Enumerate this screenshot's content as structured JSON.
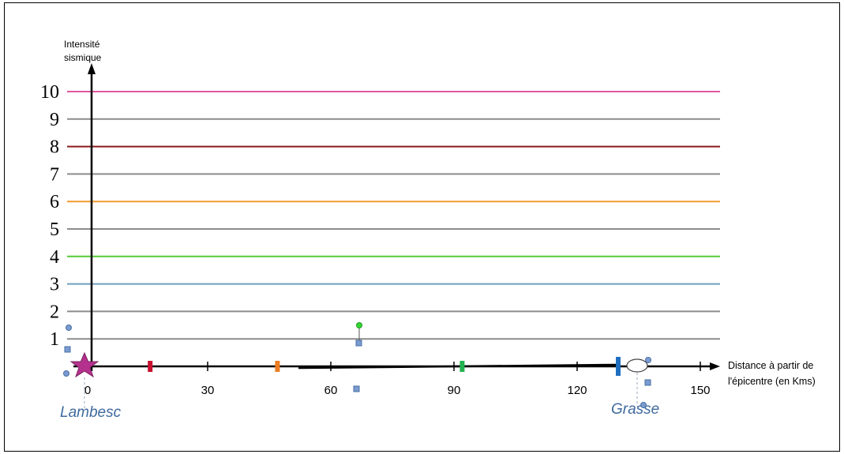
{
  "chart_data": {
    "type": "line",
    "y_label_lines": [
      "Intensité",
      "sismique"
    ],
    "x_label_lines": [
      "Distance à partir de",
      "l'épicentre (en Kms)"
    ],
    "y_ticks": [
      "1",
      "2",
      "3",
      "4",
      "5",
      "6",
      "7",
      "8",
      "9",
      "10"
    ],
    "x_ticks": [
      "0",
      "30",
      "60",
      "90",
      "120",
      "150"
    ],
    "xlim": [
      0,
      155
    ],
    "ylim": [
      0,
      10
    ],
    "intensity_lines": [
      {
        "level": 1,
        "color": "#8c8c8c"
      },
      {
        "level": 2,
        "color": "#8c8c8c"
      },
      {
        "level": 3,
        "color": "#6f9fbd"
      },
      {
        "level": 4,
        "color": "#55cc33"
      },
      {
        "level": 5,
        "color": "#8c8c8c"
      },
      {
        "level": 6,
        "color": "#f39c2e"
      },
      {
        "level": 7,
        "color": "#8c8c8c"
      },
      {
        "level": 8,
        "color": "#8b1a1a"
      },
      {
        "level": 9,
        "color": "#8c8c8c"
      },
      {
        "level": 10,
        "color": "#e0559f"
      }
    ],
    "distance_markers": [
      {
        "km": 16,
        "color": "#c8102e"
      },
      {
        "km": 47,
        "color": "#ec7d22"
      },
      {
        "km": 92,
        "color": "#21b24f"
      },
      {
        "km": 130,
        "color": "#1f6fc1"
      }
    ],
    "places": [
      {
        "name": "Lambesc",
        "km": 0
      },
      {
        "name": "Grasse",
        "km": 135
      }
    ],
    "epicenter_color": "#b5318e"
  }
}
